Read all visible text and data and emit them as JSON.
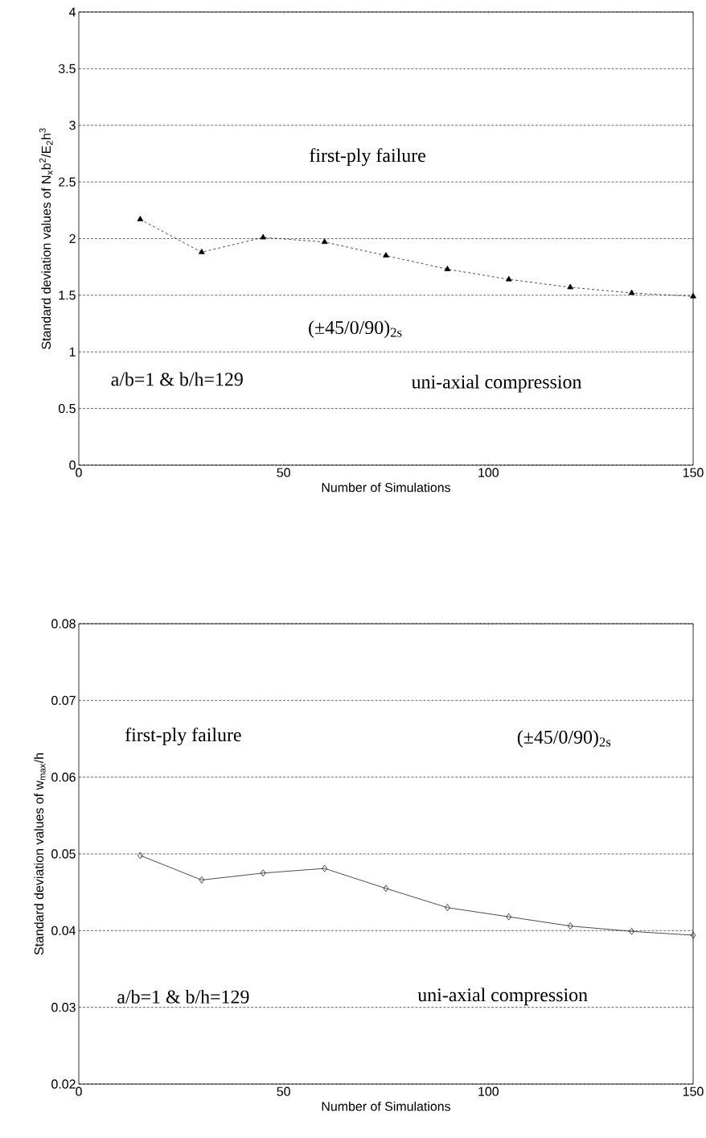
{
  "chart_data": [
    {
      "type": "line",
      "xlabel": "Number of Simulations",
      "ylabel": "Standard deviation values of N$_{x}$b$^{2}$/E$_{2}$h$^{3}$",
      "annotations": [
        "first-ply failure",
        "(±45/0/90)$_{2s}$",
        "a/b=1 & b/h=129",
        "uni-axial compression"
      ],
      "x": [
        15,
        30,
        45,
        60,
        75,
        90,
        105,
        120,
        135,
        150
      ],
      "series": [
        {
          "color": "#000000",
          "values": [
            2.17,
            1.88,
            2.01,
            1.97,
            1.85,
            1.73,
            1.64,
            1.57,
            1.52,
            1.49
          ]
        }
      ],
      "xlim": [
        0,
        150
      ],
      "ylim": [
        0,
        4
      ],
      "xticks": [
        0,
        50,
        100,
        150
      ],
      "yticks": [
        0,
        0.5,
        1,
        1.5,
        2,
        2.5,
        3,
        3.5,
        4
      ],
      "grid": "y",
      "marker": "triangle",
      "line_style": "dashed"
    },
    {
      "type": "line",
      "xlabel": "Number of Simulations",
      "ylabel": "Standard deviation values of w$_{max}$/h",
      "annotations": [
        "first-ply failure",
        "(±45/0/90)$_{2s}$",
        "a/b=1 & b/h=129",
        "uni-axial compression"
      ],
      "x": [
        15,
        30,
        45,
        60,
        75,
        90,
        105,
        120,
        135,
        150
      ],
      "series": [
        {
          "color": "#000000",
          "values": [
            0.0498,
            0.0466,
            0.0475,
            0.0481,
            0.0455,
            0.043,
            0.0418,
            0.0406,
            0.0399,
            0.0394
          ]
        }
      ],
      "xlim": [
        0,
        150
      ],
      "ylim": [
        0.02,
        0.08
      ],
      "xticks": [
        0,
        50,
        100,
        150
      ],
      "yticks": [
        0.02,
        0.03,
        0.04,
        0.05,
        0.06,
        0.07,
        0.08
      ],
      "grid": "y",
      "marker": "diamond",
      "line_style": "solid"
    }
  ]
}
